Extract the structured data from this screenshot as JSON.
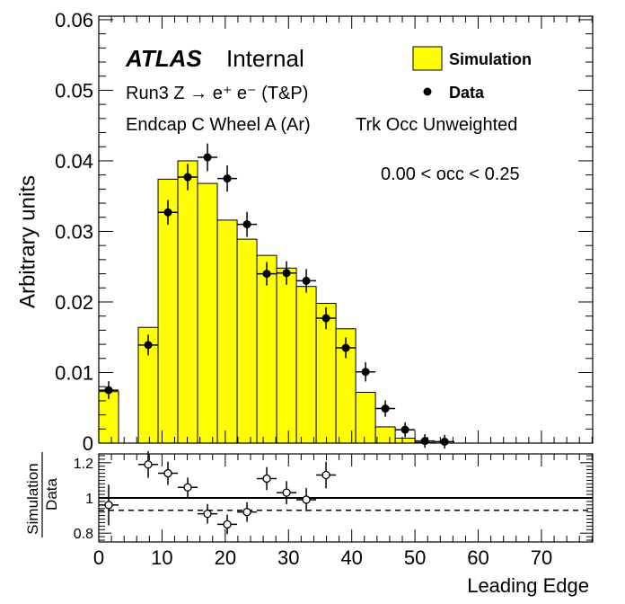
{
  "chart_data": [
    {
      "type": "bar",
      "panel": "main",
      "title": "",
      "xlabel": "Leading Edge",
      "ylabel": "Arbitrary units",
      "xlim": [
        0,
        78.1
      ],
      "ylim": [
        0,
        0.0605
      ],
      "yticks": [
        "0",
        "0.01",
        "0.02",
        "0.03",
        "0.04",
        "0.05",
        "0.06"
      ],
      "xticks": [
        "0",
        "10",
        "20",
        "30",
        "40",
        "50",
        "60",
        "70"
      ],
      "bin_edges": [
        0,
        3.125,
        6.25,
        9.375,
        12.5,
        15.625,
        18.75,
        21.875,
        25,
        28.125,
        31.25,
        34.375,
        37.5,
        40.625,
        43.75,
        46.875,
        50,
        53.125,
        56.25,
        59.375,
        62.5,
        65.625,
        68.75,
        71.875,
        75,
        78.125
      ],
      "legend": {
        "position": "top-right",
        "items": [
          {
            "label": "Simulation",
            "marker": "filled-box",
            "color": "#ffff00"
          },
          {
            "label": "Data",
            "marker": "dot",
            "color": "#000000"
          }
        ]
      },
      "series": [
        {
          "name": "Simulation",
          "kind": "histogram",
          "fill": "#ffff00",
          "values": [
            0.0073,
            0,
            0.0164,
            0.0374,
            0.04,
            0.0368,
            0.0316,
            0.0289,
            0.0266,
            0.0248,
            0.0222,
            0.0198,
            0.0162,
            0.0072,
            0.0023,
            0.0007,
            0.0001,
            0,
            0,
            0,
            0,
            0,
            0,
            0,
            0
          ]
        },
        {
          "name": "Data",
          "kind": "points",
          "x": [
            1.5625,
            7.8125,
            10.9375,
            14.0625,
            17.1875,
            20.3125,
            23.4375,
            26.5625,
            29.6875,
            32.8125,
            35.9375,
            39.0625,
            42.1875,
            45.3125,
            48.4375,
            51.5625,
            54.6875
          ],
          "y": [
            0.0075,
            0.0139,
            0.0327,
            0.0377,
            0.0405,
            0.0375,
            0.031,
            0.024,
            0.0241,
            0.023,
            0.0177,
            0.0135,
            0.0101,
            0.0049,
            0.0019,
            0.0003,
            0.0002
          ],
          "yerr": [
            0.0005,
            0.0007,
            0.001,
            0.0011,
            0.0012,
            0.0011,
            0.001,
            0.0009,
            0.0009,
            0.0009,
            0.0008,
            0.0007,
            0.0006,
            0.0004,
            0.0003,
            0.0002,
            0.0002
          ]
        }
      ],
      "annotations": {
        "experiment": "ATLAS",
        "status": "Internal",
        "process": "Run3 Z → e⁺ e⁻ (T&P)",
        "region": "Endcap C Wheel A (Ar)",
        "weighting": "Trk Occ Unweighted",
        "selection": "0.00 < occ < 0.25"
      }
    },
    {
      "type": "scatter",
      "panel": "ratio",
      "ylabel_numerator": "Simulation",
      "ylabel_denominator": "Data",
      "ylim": [
        0.75,
        1.25
      ],
      "yticks": [
        "0.8",
        "1",
        "1.2"
      ],
      "reference_lines": [
        {
          "y": 1.0,
          "style": "solid"
        },
        {
          "y": 0.93,
          "style": "dashed"
        }
      ],
      "series": [
        {
          "name": "",
          "marker": "open-circle",
          "x": [
            1.5625,
            7.8125,
            10.9375,
            14.0625,
            17.1875,
            20.3125,
            23.4375,
            26.5625,
            29.6875,
            32.8125,
            35.9375
          ],
          "y": [
            0.96,
            1.19,
            1.14,
            1.06,
            0.91,
            0.85,
            0.92,
            1.11,
            1.03,
            0.99,
            1.13
          ],
          "yerr": [
            0.09,
            0.05,
            0.04,
            0.03,
            0.03,
            0.03,
            0.03,
            0.04,
            0.04,
            0.04,
            0.05
          ]
        }
      ]
    }
  ]
}
